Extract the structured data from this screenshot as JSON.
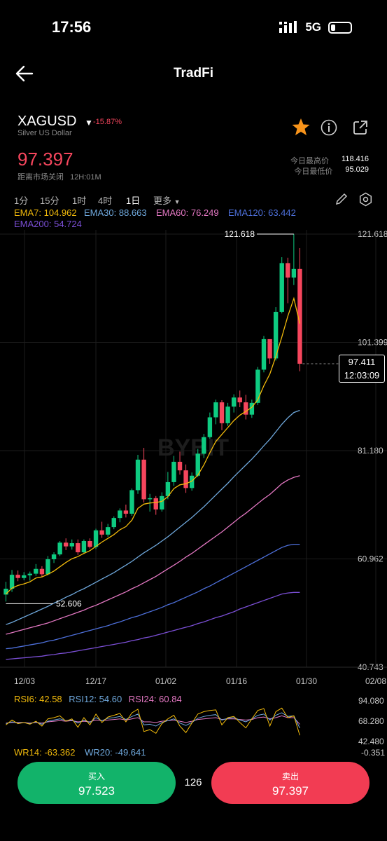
{
  "status": {
    "time": "17:56",
    "network": "5G"
  },
  "nav": {
    "title": "TradFi"
  },
  "instrument": {
    "symbol": "XAGUSD",
    "name": "Silver US Dollar",
    "change": "-15.87%",
    "price": "97.397",
    "market_status": "距离市场关闭",
    "countdown": "12H:01M"
  },
  "stats": {
    "high_label": "今日最高价",
    "high": "118.416",
    "low_label": "今日最低价",
    "low": "95.029"
  },
  "timeframes": [
    "1分",
    "15分",
    "1时",
    "4时",
    "1日",
    "更多"
  ],
  "ema": {
    "ema7": "EMA7: 104.962",
    "ema30": "EMA30: 88.663",
    "ema60": "EMA60: 76.249",
    "ema120": "EMA120: 63.442",
    "ema200": "EMA200: 54.724"
  },
  "colors": {
    "up": "#0ecb81",
    "down": "#f6465d",
    "ema7": "#f0b90b",
    "ema30": "#6fa8dc",
    "ema60": "#e377c2",
    "ema120": "#4d6fd9",
    "ema200": "#7b4fd6",
    "star": "#f7931a"
  },
  "chart_data": {
    "type": "candlestick",
    "y_ticks": [
      "121.618",
      "101.399",
      "81.180",
      "60.962",
      "40.743"
    ],
    "x_ticks": [
      "12/03",
      "12/17",
      "01/02",
      "01/16",
      "01/30",
      "02/08"
    ],
    "ylim": [
      40.743,
      121.618
    ],
    "max_label": "121.618",
    "min_label": "52.606",
    "current_price": "97.411",
    "current_time": "12:03:09",
    "watermark": "BYBIT",
    "candles": [
      [
        54.3,
        56.7,
        53.0,
        55.4
      ],
      [
        55.4,
        58.9,
        54.8,
        58.0
      ],
      [
        58.0,
        58.8,
        56.8,
        57.4
      ],
      [
        57.4,
        58.5,
        57.0,
        57.9
      ],
      [
        57.9,
        58.6,
        56.9,
        58.2
      ],
      [
        58.2,
        60.0,
        57.8,
        59.1
      ],
      [
        59.1,
        59.6,
        57.5,
        58.1
      ],
      [
        58.1,
        61.5,
        57.9,
        60.9
      ],
      [
        60.9,
        62.2,
        60.2,
        61.8
      ],
      [
        61.8,
        64.3,
        61.5,
        64.0
      ],
      [
        64.0,
        64.8,
        62.6,
        63.3
      ],
      [
        63.3,
        64.6,
        62.7,
        63.9
      ],
      [
        63.9,
        64.6,
        61.7,
        62.2
      ],
      [
        62.2,
        64.6,
        62.0,
        64.3
      ],
      [
        64.3,
        64.8,
        62.9,
        63.2
      ],
      [
        63.2,
        66.6,
        62.8,
        66.3
      ],
      [
        66.3,
        67.9,
        64.9,
        65.5
      ],
      [
        65.5,
        67.5,
        65.1,
        66.9
      ],
      [
        66.9,
        68.9,
        66.5,
        68.6
      ],
      [
        68.6,
        70.4,
        67.8,
        70.0
      ],
      [
        70.0,
        71.1,
        68.7,
        69.4
      ],
      [
        69.4,
        74.1,
        69.0,
        73.8
      ],
      [
        73.8,
        80.4,
        73.1,
        79.5
      ],
      [
        79.5,
        81.7,
        71.5,
        72.1
      ],
      [
        72.1,
        73.1,
        69.8,
        72.3
      ],
      [
        72.3,
        72.7,
        69.2,
        70.2
      ],
      [
        70.2,
        73.4,
        69.8,
        72.7
      ],
      [
        72.7,
        77.2,
        72.1,
        75.3
      ],
      [
        75.3,
        80.2,
        74.6,
        79.1
      ],
      [
        79.1,
        81.0,
        76.7,
        77.5
      ],
      [
        77.5,
        78.6,
        73.3,
        74.2
      ],
      [
        74.2,
        77.1,
        73.7,
        76.5
      ],
      [
        76.5,
        81.5,
        76.3,
        80.6
      ],
      [
        80.6,
        84.3,
        79.8,
        83.7
      ],
      [
        83.7,
        88.3,
        83.4,
        87.4
      ],
      [
        87.4,
        90.7,
        86.1,
        90.2
      ],
      [
        90.2,
        90.6,
        85.0,
        86.3
      ],
      [
        86.3,
        90.1,
        85.8,
        89.4
      ],
      [
        89.4,
        91.7,
        88.3,
        91.1
      ],
      [
        91.1,
        92.4,
        89.3,
        90.2
      ],
      [
        90.2,
        91.6,
        87.0,
        87.9
      ],
      [
        87.9,
        90.7,
        87.3,
        90.1
      ],
      [
        90.1,
        96.8,
        89.7,
        96.3
      ],
      [
        96.3,
        102.6,
        95.8,
        102.0
      ],
      [
        102.0,
        101.5,
        97.4,
        98.4
      ],
      [
        98.4,
        108.0,
        98.0,
        107.1
      ],
      [
        107.1,
        117.3,
        106.8,
        116.2
      ],
      [
        116.2,
        117.2,
        108.7,
        113.5
      ],
      [
        113.5,
        121.6,
        112.1,
        115.1
      ],
      [
        115.1,
        119.0,
        96.0,
        97.4
      ]
    ],
    "ema7": [
      54.4,
      55.5,
      56.0,
      56.3,
      56.7,
      57.4,
      57.6,
      58.1,
      58.7,
      59.5,
      60.3,
      61.0,
      61.4,
      62.0,
      62.5,
      63.3,
      64.1,
      64.8,
      65.5,
      66.4,
      67.0,
      68.2,
      70.4,
      71.2,
      71.4,
      71.5,
      71.7,
      72.6,
      74.1,
      74.8,
      75.0,
      75.5,
      76.6,
      78.5,
      80.8,
      82.9,
      84.2,
      85.5,
      86.8,
      87.8,
      88.5,
      89.3,
      90.7,
      93.3,
      95.5,
      98.8,
      102.4,
      106.3,
      109.6,
      104.9
    ],
    "ema30": [
      48.7,
      49.1,
      49.6,
      50.1,
      50.6,
      51.1,
      51.6,
      52.1,
      52.7,
      53.2,
      53.8,
      54.3,
      54.9,
      55.4,
      56.0,
      56.6,
      57.2,
      57.8,
      58.4,
      59.1,
      59.8,
      60.5,
      61.3,
      62.1,
      62.8,
      63.5,
      64.3,
      65.1,
      66.0,
      66.9,
      67.8,
      68.7,
      69.7,
      70.7,
      71.8,
      72.9,
      74.0,
      75.1,
      76.3,
      77.4,
      78.5,
      79.6,
      80.8,
      82.1,
      83.3,
      84.7,
      86.1,
      87.3,
      88.3,
      88.7
    ],
    "ema60": [
      46.9,
      47.2,
      47.5,
      47.8,
      48.1,
      48.4,
      48.7,
      49.0,
      49.4,
      49.8,
      50.2,
      50.6,
      51.0,
      51.4,
      51.9,
      52.3,
      52.8,
      53.3,
      53.8,
      54.3,
      54.8,
      55.4,
      55.9,
      56.5,
      57.1,
      57.7,
      58.4,
      59.1,
      59.8,
      60.5,
      61.3,
      62.0,
      62.8,
      63.6,
      64.4,
      65.2,
      66.0,
      66.9,
      67.8,
      68.7,
      69.5,
      70.4,
      71.3,
      72.2,
      73.0,
      74.0,
      75.0,
      75.7,
      76.2,
      76.5
    ],
    "ema120": [
      44.2,
      44.3,
      44.5,
      44.7,
      44.9,
      45.1,
      45.3,
      45.6,
      45.8,
      46.1,
      46.4,
      46.7,
      47.0,
      47.3,
      47.6,
      47.9,
      48.2,
      48.5,
      48.9,
      49.2,
      49.6,
      50.0,
      50.3,
      50.7,
      51.1,
      51.5,
      51.9,
      52.4,
      52.8,
      53.3,
      53.8,
      54.3,
      54.8,
      55.4,
      55.9,
      56.5,
      57.1,
      57.7,
      58.3,
      58.9,
      59.5,
      60.1,
      60.7,
      61.3,
      61.9,
      62.5,
      63.1,
      63.5,
      63.7,
      63.7
    ],
    "ema200": [
      42.2,
      42.3,
      42.4,
      42.5,
      42.6,
      42.7,
      42.8,
      43.0,
      43.1,
      43.3,
      43.4,
      43.6,
      43.8,
      44.0,
      44.2,
      44.4,
      44.6,
      44.8,
      45.0,
      45.2,
      45.4,
      45.7,
      45.9,
      46.2,
      46.4,
      46.7,
      47.0,
      47.3,
      47.6,
      47.9,
      48.2,
      48.5,
      48.9,
      49.2,
      49.6,
      50.0,
      50.3,
      50.7,
      51.1,
      51.6,
      52.0,
      52.4,
      52.8,
      53.2,
      53.6,
      54.0,
      54.4,
      54.6,
      54.7,
      54.7
    ]
  },
  "indicators": {
    "rsi": {
      "rsi6": "RSI6: 42.58",
      "rsi12": "RSI12: 54.60",
      "rsi24": "RSI24: 60.84",
      "ticks": [
        "94.080",
        "68.280",
        "42.480"
      ],
      "rsi6_values": [
        60,
        68,
        62,
        64,
        61,
        66,
        58,
        70,
        72,
        75,
        66,
        70,
        56,
        72,
        60,
        78,
        64,
        73,
        76,
        79,
        65,
        80,
        86,
        49,
        52,
        46,
        62,
        70,
        76,
        58,
        47,
        63,
        78,
        82,
        84,
        85,
        60,
        72,
        74,
        64,
        55,
        70,
        84,
        87,
        58,
        82,
        88,
        72,
        75,
        42.58
      ],
      "rsi12_values": [
        62,
        65,
        63,
        64,
        62,
        65,
        61,
        66,
        68,
        70,
        67,
        68,
        63,
        68,
        64,
        72,
        67,
        71,
        72,
        74,
        69,
        74,
        78,
        60,
        61,
        58,
        64,
        67,
        70,
        63,
        59,
        64,
        71,
        74,
        76,
        77,
        68,
        71,
        72,
        68,
        65,
        70,
        76,
        78,
        68,
        76,
        80,
        74,
        75,
        54.6
      ],
      "rsi24_values": [
        63,
        64,
        64,
        64,
        63,
        64,
        63,
        65,
        66,
        67,
        66,
        67,
        65,
        66,
        65,
        68,
        67,
        68,
        69,
        70,
        68,
        70,
        72,
        65,
        65,
        64,
        66,
        67,
        68,
        66,
        64,
        66,
        69,
        70,
        71,
        72,
        69,
        70,
        70,
        69,
        68,
        69,
        72,
        73,
        70,
        72,
        75,
        72,
        72,
        60.84
      ]
    },
    "wr": {
      "wr14": "WR14: -63.362",
      "wr20": "WR20: -49.641",
      "tick": "-0.351"
    }
  },
  "actions": {
    "buy_label": "买入",
    "buy_price": "97.523",
    "spread": "126",
    "sell_label": "卖出",
    "sell_price": "97.397"
  }
}
